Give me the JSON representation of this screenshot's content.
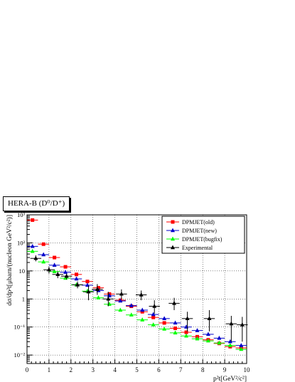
{
  "chart_data": {
    "type": "scatter",
    "title": "HERA-B (D⁰/D⁺)",
    "xlabel": "p²t[GeV²/c²]",
    "ylabel": "dσ/dp²t[μbarn/(nucleon GeV²/c²)]",
    "xlim": [
      0,
      10
    ],
    "ylim": [
      0.005,
      1000
    ],
    "y_scale": "log",
    "grid": true,
    "legend_position": "top-right",
    "x_ticks": [
      "0",
      "1",
      "2",
      "3",
      "4",
      "5",
      "6",
      "7",
      "8",
      "9",
      "10"
    ],
    "y_ticks": [
      "10⁻²",
      "10⁻¹",
      "1",
      "10",
      "10²",
      "10³"
    ],
    "series": [
      {
        "name": "DPMJET(old)",
        "color": "#ff0000",
        "marker": "square",
        "x": [
          0.25,
          0.75,
          1.25,
          1.75,
          2.25,
          2.75,
          3.25,
          3.75,
          4.25,
          4.75,
          5.25,
          5.75,
          6.25,
          6.75,
          7.25,
          7.75,
          8.25,
          8.75,
          9.25,
          9.75
        ],
        "y": [
          650,
          90,
          30,
          14,
          7.5,
          4.2,
          2.5,
          1.5,
          0.9,
          0.55,
          0.35,
          0.22,
          0.14,
          0.09,
          0.065,
          0.045,
          0.035,
          0.026,
          0.02,
          0.018
        ]
      },
      {
        "name": "DPMJET(new)",
        "color": "#0000cc",
        "marker": "triangle",
        "x": [
          0.25,
          0.75,
          1.25,
          1.75,
          2.25,
          2.75,
          3.25,
          3.75,
          4.25,
          4.75,
          5.25,
          5.75,
          6.25,
          6.75,
          7.25,
          7.75,
          8.25,
          8.75,
          9.25,
          9.75
        ],
        "y": [
          75,
          38,
          16,
          9,
          5.2,
          3.1,
          2,
          1.3,
          0.85,
          0.58,
          0.4,
          0.28,
          0.2,
          0.14,
          0.1,
          0.075,
          0.055,
          0.04,
          0.03,
          0.022
        ]
      },
      {
        "name": "DPMJET(bugfix)",
        "color": "#00ff00",
        "marker": "triangle",
        "x": [
          0.25,
          0.75,
          1.25,
          1.75,
          2.25,
          2.75,
          3.25,
          3.75,
          4.25,
          4.75,
          5.25,
          5.75,
          6.25,
          6.75,
          7.25,
          7.75,
          8.25,
          8.75,
          9.25,
          9.75
        ],
        "y": [
          50,
          21,
          9.5,
          5.5,
          3.2,
          1.9,
          1.1,
          0.65,
          0.4,
          0.27,
          0.18,
          0.12,
          0.085,
          0.062,
          0.048,
          0.038,
          0.032,
          0.027,
          0.022,
          0.016
        ]
      },
      {
        "name": "Experimental",
        "color": "#000000",
        "marker": "triangle",
        "x": [
          0.4,
          1.0,
          1.4,
          1.8,
          2.3,
          2.8,
          3.2,
          3.7,
          4.3,
          5.2,
          5.8,
          6.7,
          7.3,
          8.3,
          9.3,
          9.8
        ],
        "y": [
          28,
          11,
          7.5,
          6.5,
          3.2,
          1.8,
          2.2,
          1.0,
          1.5,
          1.4,
          0.55,
          0.7,
          0.2,
          0.2,
          0.13,
          0.12
        ],
        "y_low": [
          22,
          8,
          5.5,
          5,
          2.4,
          0.9,
          1.4,
          0.55,
          1.0,
          0.9,
          0.3,
          0.4,
          0.07,
          0.07,
          0.03,
          0.03
        ],
        "y_high": [
          36,
          14,
          9.5,
          8,
          4.2,
          3.0,
          3.4,
          1.8,
          2.2,
          2.0,
          0.9,
          1.1,
          0.35,
          0.4,
          0.25,
          0.23
        ]
      }
    ]
  }
}
